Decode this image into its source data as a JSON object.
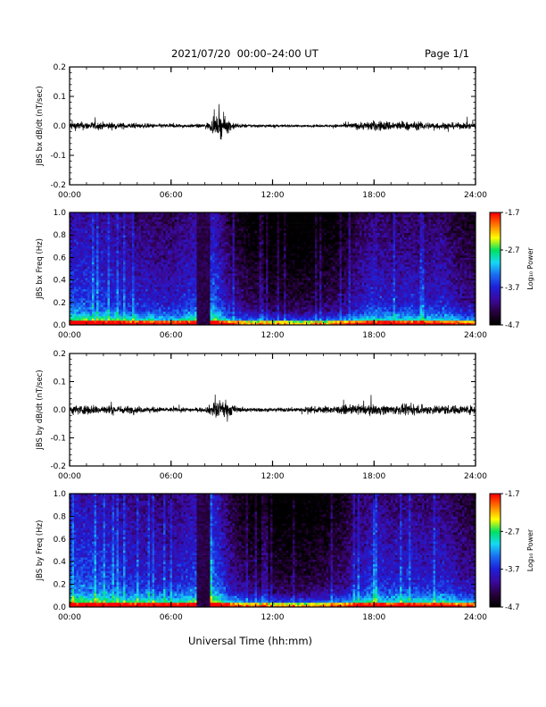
{
  "header": {
    "title": "2021/07/20  00:00–24:00 UT",
    "page": "Page 1/1"
  },
  "xlabel": "Universal Time (hh:mm)",
  "colors": {
    "trace": "#000000",
    "colormap": [
      "#000000",
      "#2a0040",
      "#3a0aa0",
      "#1d1fd8",
      "#1a6cf2",
      "#16d9f5",
      "#00e060",
      "#ffff00",
      "#ff8000",
      "#ff0000"
    ]
  },
  "chart_data": [
    {
      "type": "line",
      "panel": "JBS bx dB/dt",
      "ylabel": "JBS bx dB/dt (nT/sec)",
      "ylim": [
        -0.2,
        0.2
      ],
      "yticks": [
        "0.2",
        "0.1",
        "0.0",
        "-0.1",
        "-0.2"
      ],
      "xticks": [
        "00:00",
        "06:00",
        "12:00",
        "18:00",
        "24:00"
      ],
      "x_range_hours": [
        0,
        24
      ],
      "series": [
        {
          "x_hours": [
            0,
            2,
            4,
            6,
            7,
            8,
            8.5,
            9,
            9.5,
            10,
            12,
            14,
            16,
            17,
            18,
            19,
            20,
            21,
            22,
            23,
            24
          ],
          "amplitude": [
            0.025,
            0.022,
            0.014,
            0.012,
            0.01,
            0.012,
            0.04,
            0.07,
            0.03,
            0.012,
            0.008,
            0.006,
            0.01,
            0.02,
            0.03,
            0.028,
            0.024,
            0.022,
            0.02,
            0.018,
            0.018
          ]
        }
      ]
    },
    {
      "type": "heatmap",
      "panel": "JBS bx Freq",
      "ylabel": "JBS bx Freq (Hz)",
      "ylim": [
        0.0,
        1.0
      ],
      "yticks": [
        "1.0",
        "0.8",
        "0.6",
        "0.4",
        "0.2",
        "0.0"
      ],
      "xticks": [
        "00:00",
        "06:00",
        "12:00",
        "18:00",
        "24:00"
      ],
      "x_range_hours": [
        0,
        24
      ],
      "colorbar": {
        "label": "Log₁₀ Power",
        "min": -4.7,
        "max": -1.7,
        "ticks": [
          "-1.7",
          "-2.7",
          "-3.7",
          "-4.7"
        ]
      },
      "data_gap_hours": [
        7.5,
        8.3
      ],
      "activity_hours": [
        0,
        2,
        4,
        6,
        8.5,
        9.5,
        10.5,
        12,
        14,
        16,
        17,
        18,
        19,
        20,
        21,
        22,
        23,
        24
      ],
      "activity_level": [
        0.75,
        0.7,
        0.6,
        0.55,
        0.8,
        0.45,
        0.3,
        0.2,
        0.2,
        0.3,
        0.5,
        0.65,
        0.55,
        0.6,
        0.55,
        0.6,
        0.45,
        0.4
      ]
    },
    {
      "type": "line",
      "panel": "JBS by dB/dt",
      "ylabel": "JBS by dB/dt (nT/sec)",
      "ylim": [
        -0.2,
        0.2
      ],
      "yticks": [
        "0.2",
        "0.1",
        "0.0",
        "-0.1",
        "-0.2"
      ],
      "xticks": [
        "00:00",
        "06:00",
        "12:00",
        "18:00",
        "24:00"
      ],
      "x_range_hours": [
        0,
        24
      ],
      "series": [
        {
          "x_hours": [
            0,
            2,
            4,
            6,
            7,
            8,
            8.5,
            9,
            9.5,
            10,
            12,
            14,
            16,
            17,
            18,
            19,
            20,
            21,
            22,
            23,
            24
          ],
          "amplitude": [
            0.03,
            0.028,
            0.02,
            0.014,
            0.012,
            0.012,
            0.045,
            0.06,
            0.04,
            0.015,
            0.01,
            0.018,
            0.024,
            0.03,
            0.03,
            0.028,
            0.03,
            0.028,
            0.03,
            0.026,
            0.026
          ]
        }
      ]
    },
    {
      "type": "heatmap",
      "panel": "JBS by Freq",
      "ylabel": "JBS by Freq (Hz)",
      "ylim": [
        0.0,
        1.0
      ],
      "yticks": [
        "1.0",
        "0.8",
        "0.6",
        "0.4",
        "0.2",
        "0.0"
      ],
      "xticks": [
        "00:00",
        "06:00",
        "12:00",
        "18:00",
        "24:00"
      ],
      "x_range_hours": [
        0,
        24
      ],
      "colorbar": {
        "label": "Log₁₀ Power",
        "min": -4.7,
        "max": -1.7,
        "ticks": [
          "-1.7",
          "-2.7",
          "-3.7",
          "-4.7"
        ]
      },
      "data_gap_hours": [
        7.5,
        8.3
      ],
      "activity_hours": [
        0,
        2,
        4,
        6,
        8.5,
        9.5,
        10.5,
        12,
        14,
        16,
        17,
        18,
        19,
        20,
        21,
        22,
        23,
        24
      ],
      "activity_level": [
        0.8,
        0.75,
        0.65,
        0.6,
        0.85,
        0.5,
        0.3,
        0.2,
        0.22,
        0.35,
        0.55,
        0.7,
        0.6,
        0.65,
        0.6,
        0.65,
        0.5,
        0.45
      ]
    }
  ]
}
